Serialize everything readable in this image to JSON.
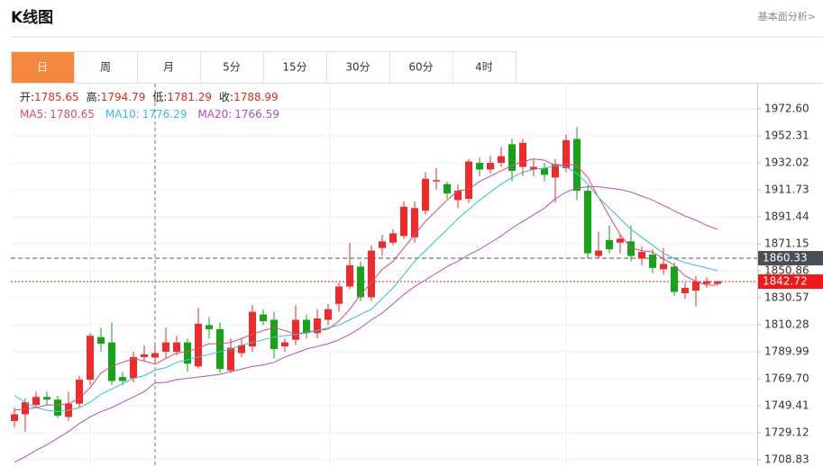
{
  "header": {
    "title": "K线图",
    "link": "基本面分析>"
  },
  "tabs": [
    "日",
    "周",
    "月",
    "5分",
    "15分",
    "30分",
    "60分",
    "4时"
  ],
  "active_tab": 0,
  "chart_data": {
    "type": "candlestick",
    "open": [
      1738,
      1743,
      1750,
      1756,
      1754,
      1741,
      1751,
      1769,
      1801,
      1797,
      1771,
      1770,
      1786,
      1785.65,
      1790,
      1790,
      1797,
      1779,
      1810,
      1807,
      1776,
      1789,
      1794,
      1818,
      1814,
      1794,
      1799,
      1814,
      1804,
      1814,
      1826,
      1839,
      1854,
      1831,
      1868,
      1872,
      1877,
      1876,
      1896,
      1918,
      1916,
      1904,
      1905,
      1932,
      1927,
      1932,
      1946,
      1929,
      1927,
      1928,
      1921,
      1928,
      1950,
      1911,
      1862,
      1874,
      1872,
      1873,
      1860,
      1863,
      1852,
      1854,
      1834,
      1836,
      1841,
      1841
    ],
    "high": [
      1748,
      1755,
      1760,
      1760,
      1757,
      1760,
      1772,
      1804,
      1808,
      1812,
      1775,
      1790,
      1795,
      1794.79,
      1808,
      1802,
      1800,
      1823,
      1816,
      1812,
      1800,
      1800,
      1825,
      1822,
      1820,
      1800,
      1825,
      1818,
      1822,
      1826,
      1842,
      1872,
      1858,
      1870,
      1878,
      1882,
      1903,
      1903,
      1925,
      1928,
      1918,
      1916,
      1935,
      1936,
      1937,
      1944,
      1950,
      1950,
      1935,
      1932,
      1935,
      1953,
      1959,
      1915,
      1880,
      1885,
      1878,
      1885,
      1869,
      1867,
      1868,
      1857,
      1842,
      1847,
      1846,
      1843
    ],
    "low": [
      1733,
      1730,
      1748,
      1750,
      1740,
      1738,
      1748,
      1765,
      1790,
      1765,
      1765,
      1767,
      1783,
      1781.29,
      1785,
      1787,
      1775,
      1777,
      1800,
      1774,
      1774,
      1786,
      1790,
      1810,
      1785,
      1790,
      1795,
      1800,
      1800,
      1810,
      1820,
      1837,
      1828,
      1828,
      1862,
      1870,
      1875,
      1872,
      1893,
      1912,
      1905,
      1898,
      1902,
      1922,
      1924,
      1929,
      1918,
      1922,
      1922,
      1918,
      1902,
      1925,
      1904,
      1860,
      1860,
      1864,
      1864,
      1858,
      1855,
      1849,
      1848,
      1832,
      1830,
      1824,
      1838,
      1840
    ],
    "close": [
      1743,
      1752,
      1756,
      1754,
      1742,
      1751,
      1769,
      1802,
      1796,
      1768,
      1768,
      1786,
      1788,
      1788.99,
      1797,
      1797,
      1781,
      1811,
      1807,
      1777,
      1793,
      1795,
      1820,
      1813,
      1792,
      1797,
      1814,
      1804,
      1815,
      1822,
      1839,
      1855,
      1831,
      1866,
      1873,
      1879,
      1899,
      1898,
      1920,
      1919,
      1909,
      1911,
      1933,
      1927,
      1932,
      1937,
      1926,
      1947,
      1929,
      1923,
      1931,
      1949,
      1911,
      1864,
      1866,
      1867,
      1875,
      1862,
      1865,
      1853,
      1856,
      1835,
      1838,
      1843,
      1843,
      1843
    ],
    "up_color": "#ee2a2a",
    "down_color": "#16a316",
    "series": [
      {
        "name": "MA5:",
        "color": "#e0497a",
        "values": [
          1746,
          1747,
          1748,
          1750,
          1750,
          1751,
          1755,
          1763,
          1774,
          1779,
          1782,
          1785,
          1783,
          1780.65,
          1785,
          1789,
          1790,
          1793,
          1796,
          1796,
          1797,
          1800,
          1803,
          1806,
          1808,
          1806,
          1803,
          1805,
          1806,
          1807,
          1813,
          1822,
          1833,
          1842,
          1852,
          1858,
          1868,
          1878,
          1888,
          1896,
          1904,
          1911,
          1912,
          1918,
          1922,
          1926,
          1930,
          1933,
          1935,
          1934,
          1930,
          1931,
          1930,
          1921,
          1906,
          1892,
          1878,
          1868,
          1866,
          1865,
          1860,
          1855,
          1847,
          1843,
          1840,
          1840
        ]
      },
      {
        "name": "MA10:",
        "color": "#36bfd6",
        "values": [
          1757,
          1752,
          1748,
          1746,
          1745,
          1746,
          1748,
          1752,
          1758,
          1762,
          1766,
          1770,
          1772,
          1776.29,
          1778,
          1782,
          1784,
          1786,
          1788,
          1790,
          1792,
          1795,
          1797,
          1799,
          1801,
          1802,
          1803,
          1804,
          1806,
          1808,
          1810,
          1814,
          1818,
          1822,
          1830,
          1838,
          1848,
          1858,
          1866,
          1874,
          1882,
          1890,
          1897,
          1904,
          1910,
          1916,
          1921,
          1925,
          1927,
          1928,
          1930,
          1929,
          1924,
          1916,
          1906,
          1898,
          1890,
          1882,
          1876,
          1870,
          1864,
          1860,
          1857,
          1855,
          1853,
          1851
        ]
      },
      {
        "name": "MA20:",
        "color": "#b04fc6",
        "values": [
          1707,
          1711,
          1716,
          1720,
          1725,
          1730,
          1736,
          1741,
          1745,
          1748,
          1752,
          1756,
          1760,
          1766.59,
          1767,
          1769,
          1770,
          1771,
          1772,
          1773,
          1775,
          1777,
          1779,
          1780,
          1782,
          1786,
          1789,
          1792,
          1794,
          1796,
          1799,
          1803,
          1808,
          1814,
          1819,
          1826,
          1833,
          1839,
          1844,
          1849,
          1854,
          1858,
          1863,
          1867,
          1872,
          1877,
          1883,
          1888,
          1893,
          1898,
          1905,
          1910,
          1913,
          1914,
          1914,
          1913,
          1912,
          1910,
          1907,
          1904,
          1900,
          1896,
          1892,
          1889,
          1885,
          1882
        ]
      }
    ],
    "ohlc_labels": [
      "开:",
      "高:",
      "低:",
      "收:"
    ],
    "crosshair_index": 13,
    "ylim": [
      1704.1,
      1991.54
    ],
    "yticks": [
      {
        "value": 1972.6,
        "label": "1972.60"
      },
      1952.31,
      1932.02,
      1911.73,
      1891.44,
      1871.15,
      1850.86,
      1830.57,
      1810.28,
      1789.99,
      {
        "value": 1769.7,
        "label": "1769.70"
      },
      1749.41,
      1729.12,
      1708.83
    ],
    "grid": true,
    "price_lines": [
      {
        "value": 1860.33,
        "color": "#4a4f57",
        "style": "dashed"
      },
      {
        "value": 1842.72,
        "color": "#f01818",
        "style": "dotted"
      }
    ]
  }
}
